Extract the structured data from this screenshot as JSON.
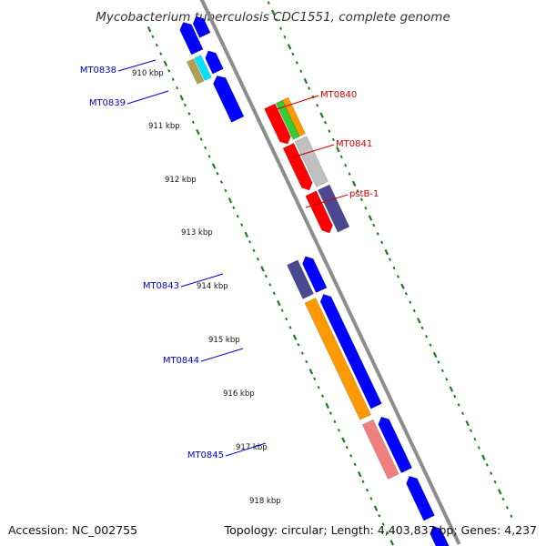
{
  "title": "Mycobacterium tuberculosis CDC1551, complete genome",
  "footer": {
    "accession": "Accession: NC_002755",
    "summary": "Topology: circular; Length: 4,403,837 bp; Genes: 4,237"
  },
  "colors": {
    "backbone": "#8c8c8c",
    "tick": "#1e7d1e",
    "label_forward": "#0000cc",
    "label_reverse": "#cc0000",
    "gene_blue": "#0000ff",
    "gene_red": "#ff0000",
    "gene_orange": "#ff9900",
    "gene_green": "#33cc33",
    "gene_gray": "#c0c0c0",
    "gene_navy": "#4a4890",
    "gene_pink": "#f08080",
    "gene_olive": "#b0a050",
    "gene_cyan": "#00e5ff"
  },
  "kbp_markers": [
    "910 kbp",
    "911 kbp",
    "912 kbp",
    "913 kbp",
    "914 kbp",
    "915 kbp",
    "916 kbp",
    "917 kbp",
    "918 kbp"
  ],
  "gene_labels": [
    {
      "text": "MT0838",
      "strand": "forward"
    },
    {
      "text": "MT0839",
      "strand": "forward"
    },
    {
      "text": "MT0840",
      "strand": "reverse"
    },
    {
      "text": "MT0841",
      "strand": "reverse"
    },
    {
      "text": "pstB-1",
      "strand": "reverse"
    },
    {
      "text": "MT0843",
      "strand": "forward"
    },
    {
      "text": "MT0844",
      "strand": "forward"
    },
    {
      "text": "MT0845",
      "strand": "forward"
    }
  ]
}
